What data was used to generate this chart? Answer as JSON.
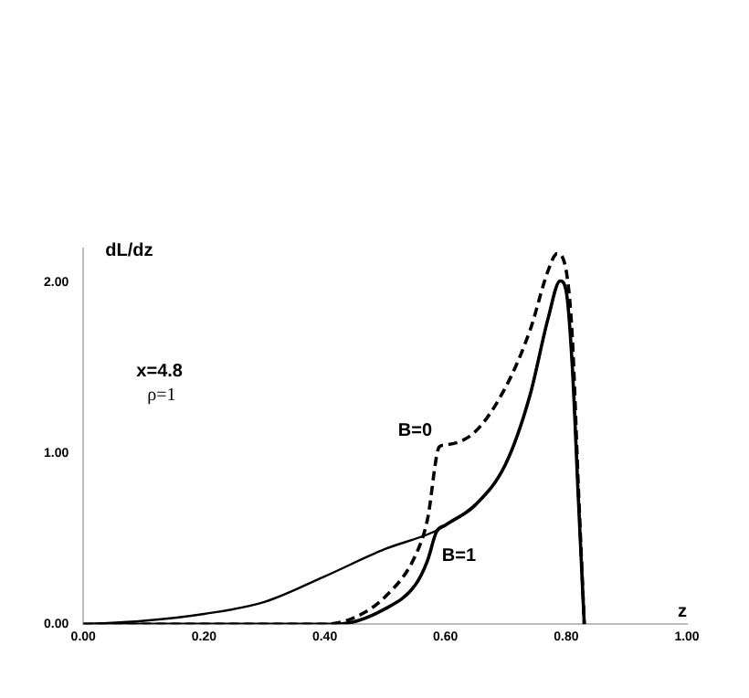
{
  "chart_data": {
    "type": "line",
    "xlabel": "z",
    "ylabel": "dL/dz",
    "xlim": [
      0,
      1
    ],
    "ylim": [
      0,
      2.2
    ],
    "xticks": [
      {
        "value": 0,
        "label": "0.00"
      },
      {
        "value": 0.2,
        "label": "0.20"
      },
      {
        "value": 0.4,
        "label": "0.40"
      },
      {
        "value": 0.6,
        "label": "0.60"
      },
      {
        "value": 0.8,
        "label": "0.80"
      },
      {
        "value": 1,
        "label": "1.00"
      }
    ],
    "yticks": [
      {
        "value": 0,
        "label": "0.00"
      },
      {
        "value": 1,
        "label": "1.00"
      },
      {
        "value": 2,
        "label": "2.00"
      }
    ],
    "grid": false,
    "legend": false,
    "marker": "none",
    "annotations": [
      "x=4.8",
      "ρ=1"
    ],
    "series": [
      {
        "color": "#000000",
        "line_style": "solid",
        "x": [
          0,
          0.1,
          0.2,
          0.3,
          0.4,
          0.5,
          0.58,
          0.6,
          0.65,
          0.7,
          0.74,
          0.77,
          0.79,
          0.8,
          0.81,
          0.82,
          0.83
        ],
        "values": [
          0,
          0.02,
          0.06,
          0.13,
          0.28,
          0.44,
          0.54,
          0.58,
          0.7,
          0.94,
          1.34,
          1.79,
          2.01,
          1.95,
          1.52,
          0.75,
          0
        ]
      },
      {
        "name": "B=1",
        "color": "#000000",
        "line_style": "solid",
        "x": [
          0,
          0.42,
          0.5,
          0.55,
          0.57,
          0.585,
          0.6,
          0.65,
          0.7,
          0.74,
          0.77,
          0.79,
          0.8,
          0.81,
          0.82,
          0.83
        ],
        "values": [
          0,
          0,
          0.09,
          0.23,
          0.37,
          0.54,
          0.58,
          0.7,
          0.94,
          1.34,
          1.79,
          2.01,
          1.95,
          1.52,
          0.75,
          0
        ]
      },
      {
        "name": "B=0",
        "color": "#000000",
        "line_style": "dashed",
        "x": [
          0,
          0.4,
          0.45,
          0.5,
          0.55,
          0.57,
          0.59,
          0.6,
          0.65,
          0.7,
          0.74,
          0.77,
          0.785,
          0.8,
          0.81,
          0.82,
          0.83
        ],
        "values": [
          0,
          0,
          0.04,
          0.16,
          0.4,
          0.61,
          1.04,
          1.05,
          1.13,
          1.39,
          1.72,
          2.07,
          2.17,
          2.07,
          1.69,
          0.82,
          0
        ]
      }
    ]
  }
}
